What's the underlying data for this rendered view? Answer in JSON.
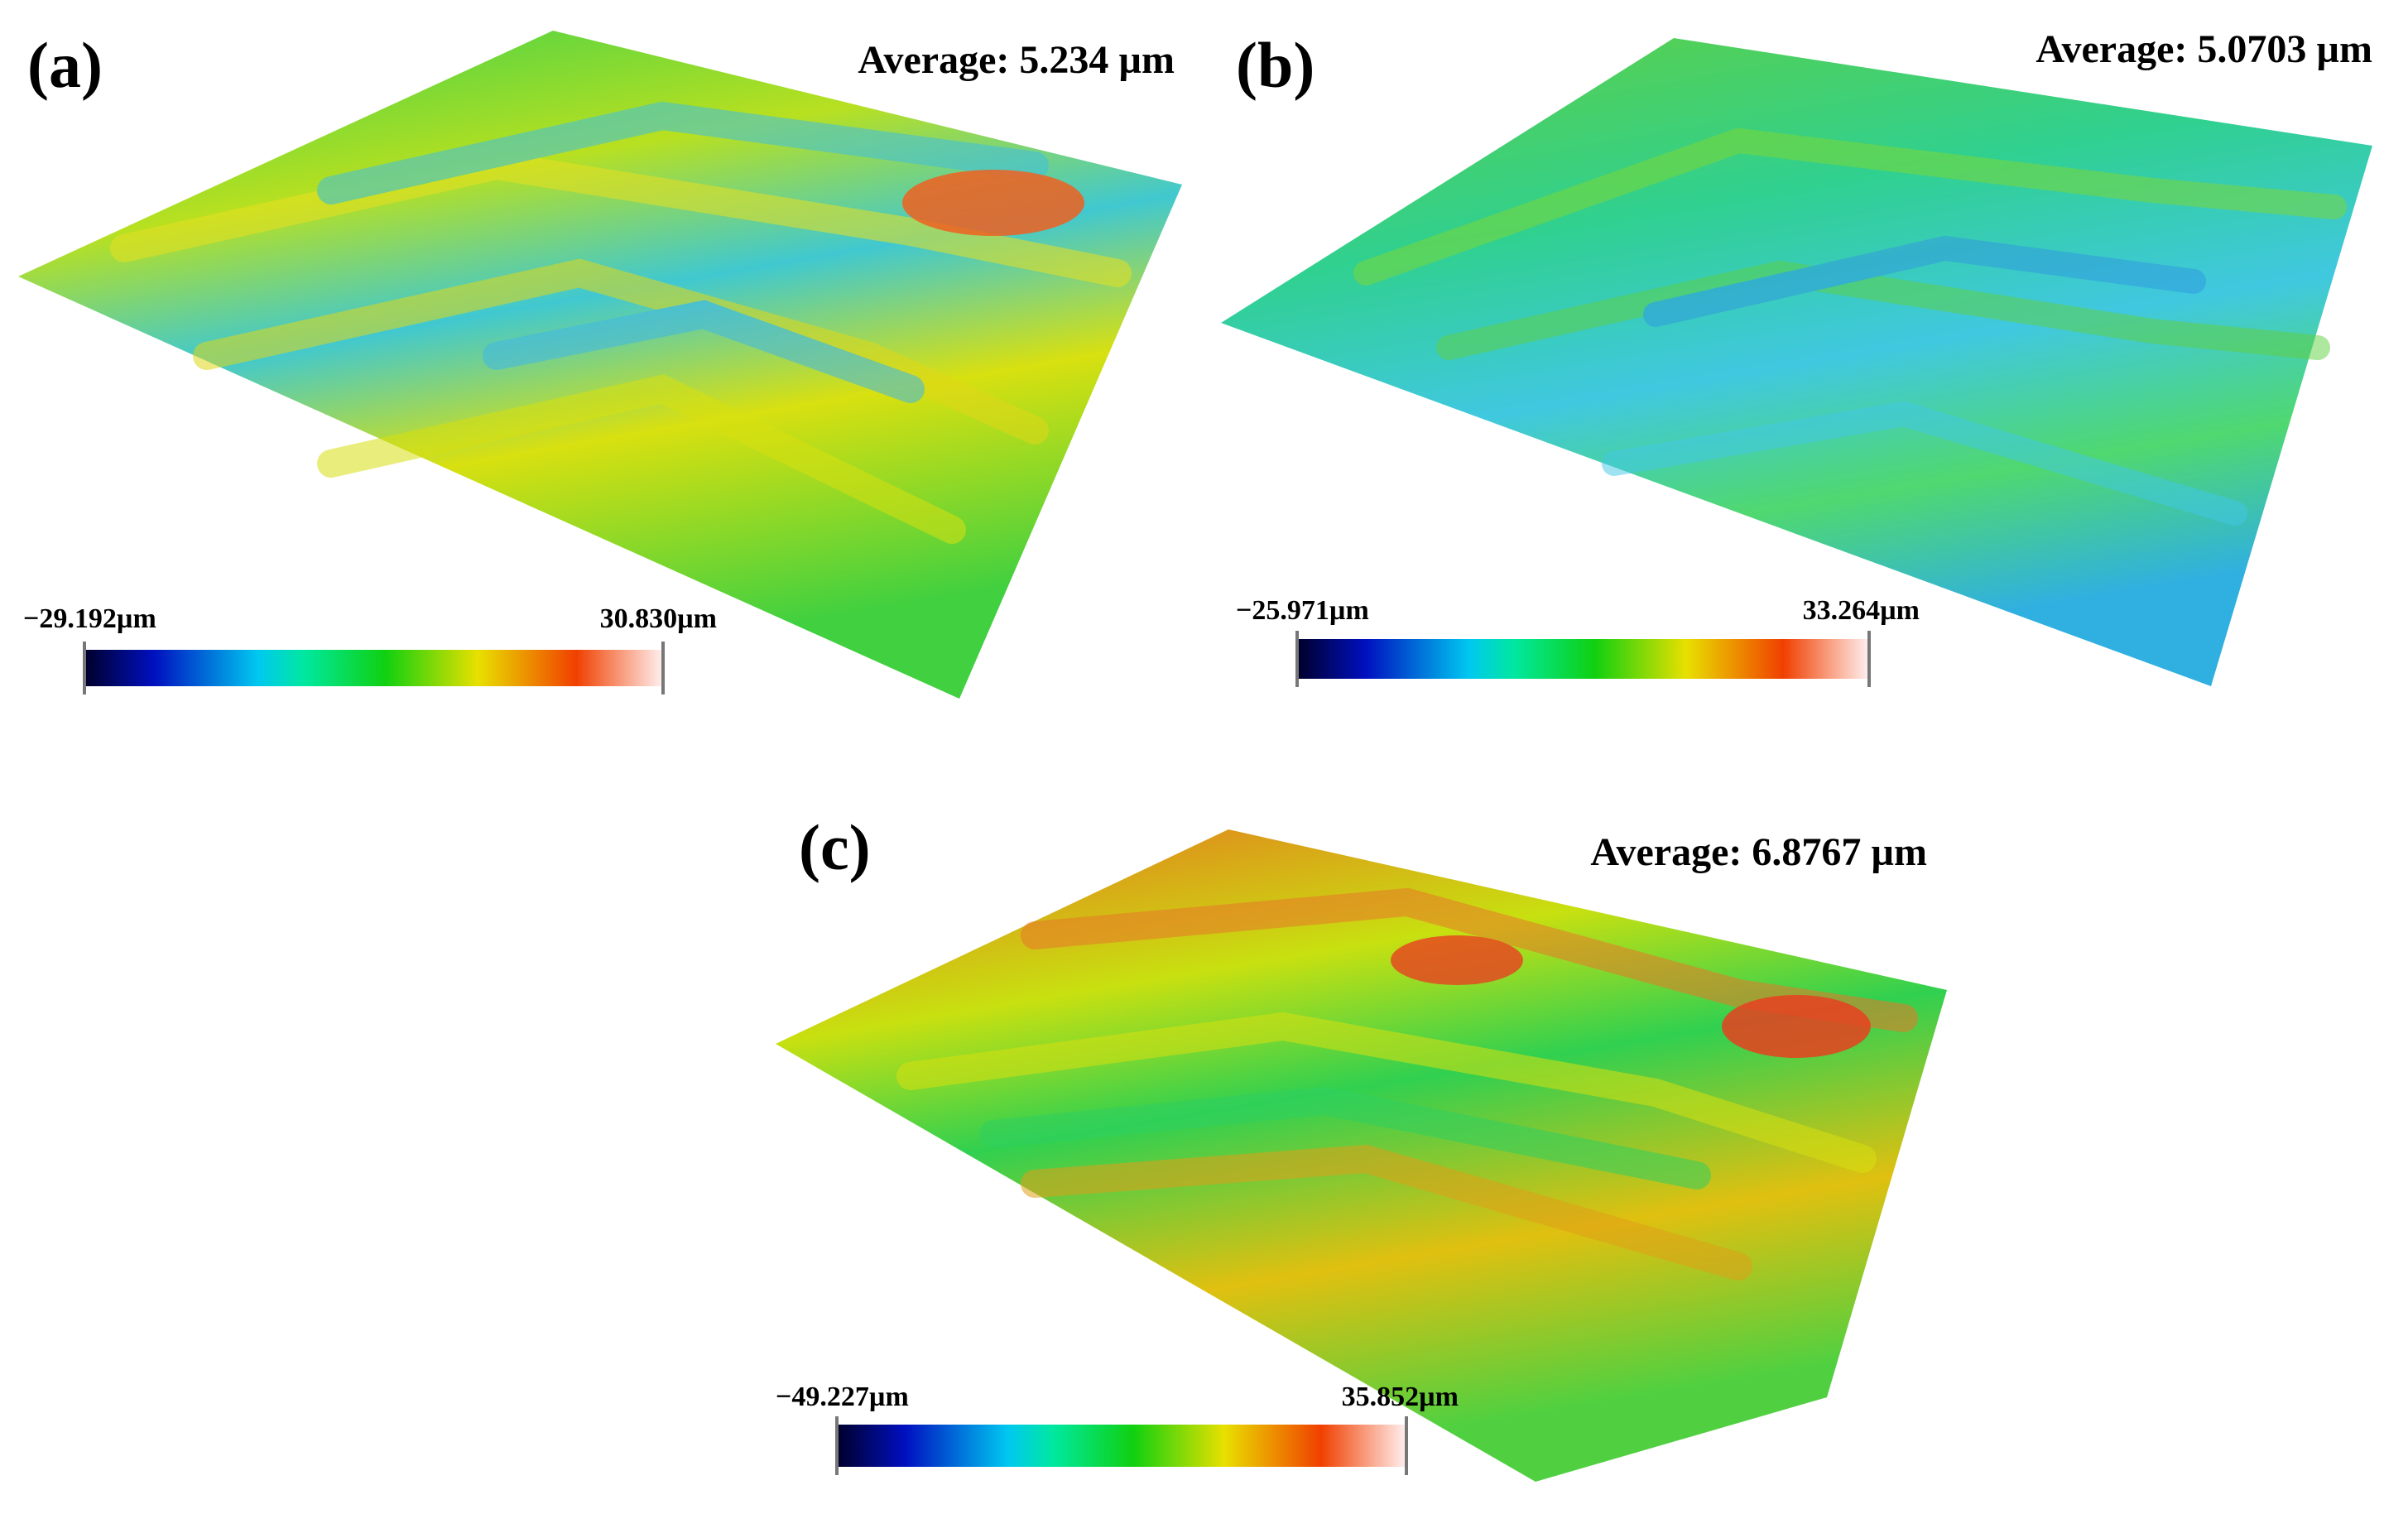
{
  "panels": [
    {
      "label": "(a)",
      "average": "Average: 5.234 µm",
      "colorbar": {
        "min": "−29.192µm",
        "max": "30.830µm"
      }
    },
    {
      "label": "(b)",
      "average": "Average: 5.0703 µm",
      "colorbar": {
        "min": "−25.971µm",
        "max": "33.264µm"
      }
    },
    {
      "label": "(c)",
      "average": "Average: 6.8767 µm",
      "colorbar": {
        "min": "−49.227µm",
        "max": "35.852µm"
      }
    }
  ]
}
